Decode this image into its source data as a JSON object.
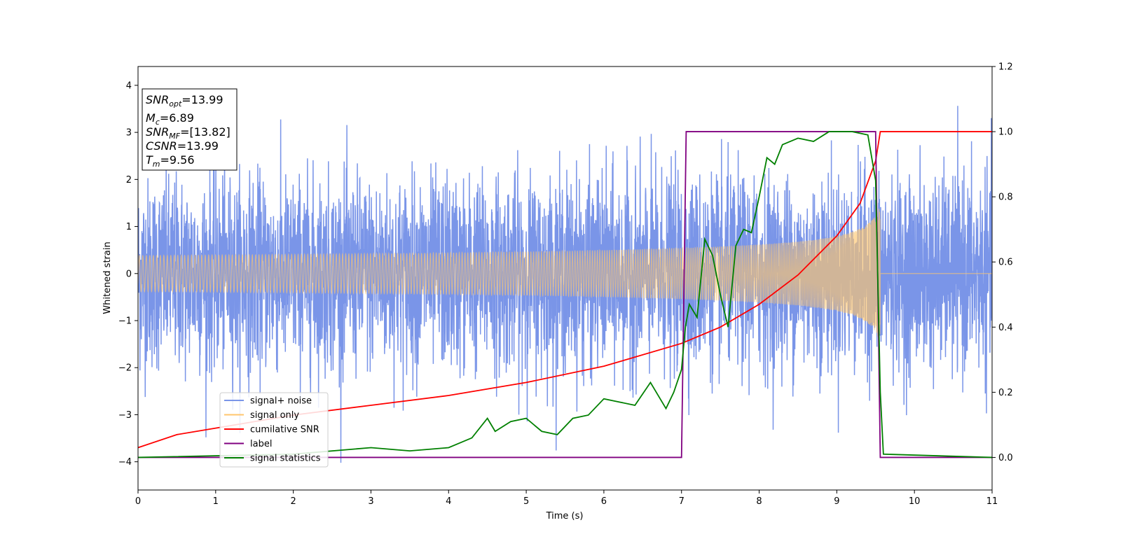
{
  "chart_data": {
    "type": "line",
    "xlabel": "Time (s)",
    "ylabel": "Whitened strain",
    "xlim": [
      0,
      11
    ],
    "ylim_left": [
      -4.6,
      4.4
    ],
    "ylim_right": [
      -0.1,
      1.2
    ],
    "x_ticks": [
      0,
      1,
      2,
      3,
      4,
      5,
      6,
      7,
      8,
      9,
      10,
      11
    ],
    "y_ticks_left": [
      -4,
      -3,
      -2,
      -1,
      0,
      1,
      2,
      3,
      4
    ],
    "y_ticks_right": [
      "0.0",
      "0.2",
      "0.4",
      "0.6",
      "0.8",
      "1.0",
      "1.2"
    ],
    "grid": false,
    "legend_position": "lower-left",
    "colors": {
      "signal_noise": "#7a95e8",
      "signal_only": "#ffc66d",
      "cumulative_snr": "#ff0000",
      "label": "#800080",
      "signal_statistics": "#008000"
    },
    "annotation": [
      {
        "base": "SNR",
        "sub": "opt",
        "value": "=13.99"
      },
      {
        "base": "M",
        "sub": "c",
        "value": "=6.89"
      },
      {
        "base": "SNR",
        "sub": "MF",
        "value": "=[13.82]"
      },
      {
        "base": "CSNR",
        "sub": "",
        "value": "=13.99"
      },
      {
        "base": "T",
        "sub": "m",
        "value": "=9.56"
      }
    ],
    "series": [
      {
        "name": "signal+ noise",
        "axis": "left",
        "kind": "noise",
        "amplitude_std": 1.0,
        "x_range": [
          0,
          11
        ]
      },
      {
        "name": "signal only",
        "axis": "left",
        "kind": "chirp",
        "merger_time": 9.56,
        "peak_amplitude": 1.5,
        "x_range": [
          0,
          11
        ]
      },
      {
        "name": "cumilative SNR",
        "axis": "right",
        "x": [
          0,
          0.5,
          1,
          2,
          3,
          4,
          5,
          6,
          7,
          7.5,
          8,
          8.5,
          9,
          9.3,
          9.5,
          9.56,
          11
        ],
        "y": [
          0.03,
          0.07,
          0.09,
          0.13,
          0.16,
          0.19,
          0.23,
          0.28,
          0.35,
          0.4,
          0.47,
          0.56,
          0.68,
          0.78,
          0.91,
          1.0,
          1.0
        ]
      },
      {
        "name": "label",
        "axis": "right",
        "x": [
          0,
          7.0,
          7.06,
          9.5,
          9.56,
          11
        ],
        "y": [
          0,
          0,
          1,
          1,
          0,
          0
        ]
      },
      {
        "name": "signal statistics",
        "axis": "right",
        "x": [
          0,
          2,
          3,
          3.5,
          4,
          4.3,
          4.5,
          4.6,
          4.8,
          5.0,
          5.2,
          5.4,
          5.6,
          5.8,
          6.0,
          6.2,
          6.4,
          6.6,
          6.8,
          6.9,
          7.0,
          7.05,
          7.1,
          7.2,
          7.3,
          7.4,
          7.5,
          7.6,
          7.7,
          7.8,
          7.9,
          8.0,
          8.1,
          8.2,
          8.3,
          8.5,
          8.7,
          8.9,
          9.0,
          9.2,
          9.4,
          9.5,
          9.56,
          9.6,
          11
        ],
        "y": [
          0.0,
          0.01,
          0.03,
          0.02,
          0.03,
          0.06,
          0.12,
          0.08,
          0.11,
          0.12,
          0.08,
          0.07,
          0.12,
          0.13,
          0.18,
          0.17,
          0.16,
          0.23,
          0.15,
          0.2,
          0.27,
          0.4,
          0.47,
          0.43,
          0.67,
          0.62,
          0.5,
          0.4,
          0.65,
          0.7,
          0.69,
          0.8,
          0.92,
          0.9,
          0.96,
          0.98,
          0.97,
          1.0,
          1.0,
          1.0,
          0.99,
          0.85,
          0.2,
          0.01,
          0.0
        ]
      }
    ]
  }
}
